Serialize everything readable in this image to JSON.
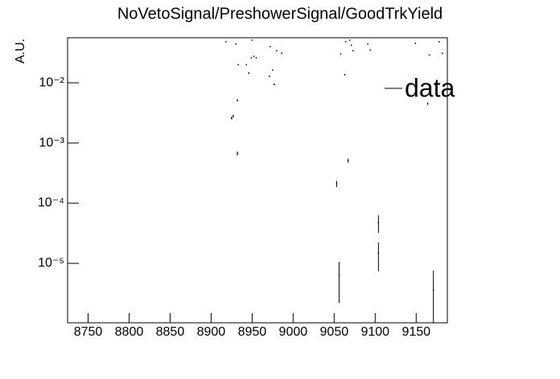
{
  "chart_data": {
    "type": "scatter",
    "title": "NoVetoSignal/PreshowerSignal/GoodTrkYield",
    "y_label": "A.U.",
    "log_y": true,
    "legend": "upper right",
    "color": "#000000",
    "series": [
      {
        "name": "data",
        "x": [
          8918,
          8925,
          8927,
          8930,
          8932,
          8932,
          8933,
          8943,
          8946,
          8949,
          8950,
          8952,
          8955,
          8971,
          8972,
          8975,
          8977,
          8980,
          8986,
          9053,
          9056,
          9058,
          9063,
          9064,
          9067,
          9069,
          9071,
          9073,
          9091,
          9094,
          9104,
          9104,
          9149,
          9164,
          9166,
          9171,
          9178,
          9182
        ],
        "values": [
          0.048,
          0.0026,
          0.0028,
          0.044,
          0.0051,
          0.00067,
          0.02,
          0.02,
          0.0145,
          0.026,
          0.051,
          0.0275,
          0.026,
          0.0128,
          0.04,
          0.0163,
          0.0094,
          0.034,
          0.031,
          0.00021,
          6.4e-06,
          0.03,
          0.0136,
          0.048,
          0.00051,
          0.051,
          0.042,
          0.034,
          0.044,
          0.035,
          4.75e-05,
          1.48e-05,
          0.045,
          0.0045,
          0.029,
          3.6e-06,
          0.048,
          0.031
        ],
        "errors": [
          0.0005,
          0.00015,
          0.00015,
          0.0005,
          0.0002,
          5e-05,
          0.0003,
          0.0003,
          0.0003,
          0.0003,
          0.0005,
          0.0003,
          0.0003,
          0.0003,
          0.0005,
          0.0003,
          0.0003,
          0.0004,
          0.0004,
          2.5e-05,
          4.2e-06,
          0.0004,
          0.0003,
          0.0005,
          4e-05,
          0.0005,
          0.0005,
          0.0004,
          0.0005,
          0.0004,
          1.55e-05,
          7.4e-06,
          0.0005,
          0.0002,
          0.0004,
          4e-06,
          0.0005,
          0.0004
        ]
      }
    ],
    "xlim": [
      8725,
      9188
    ],
    "xticks": [
      8750,
      8800,
      8850,
      8900,
      8950,
      9000,
      9050,
      9100,
      9150
    ],
    "ylim": [
      1.03e-06,
      0.056
    ],
    "yticks": [
      {
        "value": 0.01,
        "label": "10⁻²"
      },
      {
        "value": 0.001,
        "label": "10⁻³"
      },
      {
        "value": 0.0001,
        "label": "10⁻⁴"
      },
      {
        "value": 1e-05,
        "label": "10⁻⁵"
      }
    ]
  }
}
